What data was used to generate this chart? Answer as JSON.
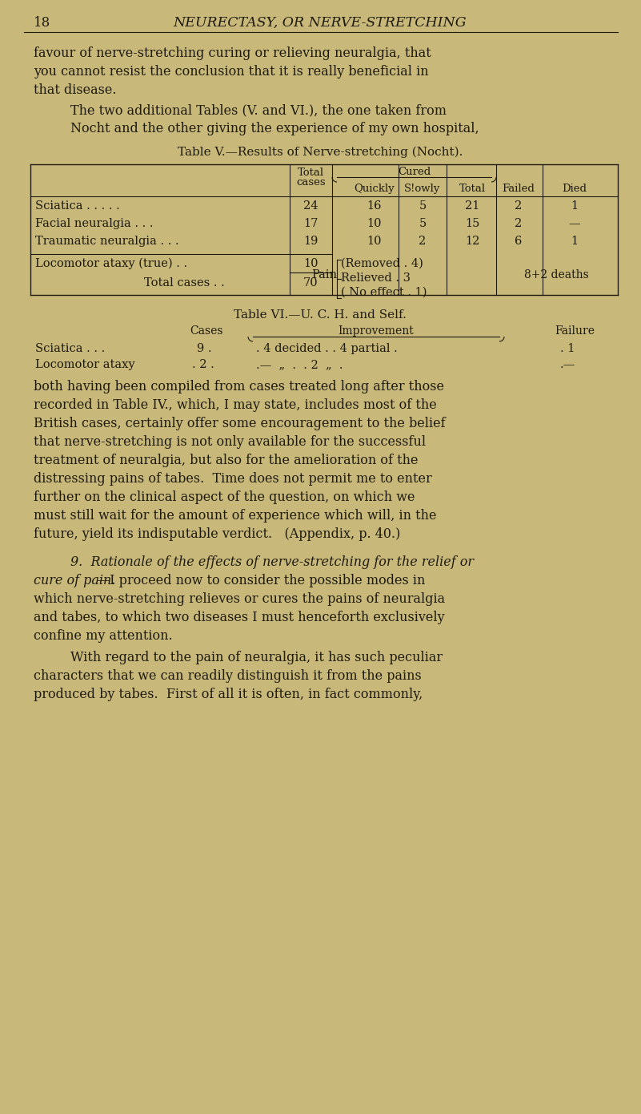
{
  "bg_color": "#c8b97a",
  "text_color": "#1e1a10",
  "page_number": "18",
  "header_title": "NEURECTASY, OR NERVE-STRETCHING",
  "para1_lines": [
    "favour of nerve-stretching curing or relieving neuralgia, that",
    "you cannot resist the conclusion that it is really beneficial in",
    "that disease."
  ],
  "para2_lines": [
    "The two additional Tables (V. and VI.), the one taken from",
    "Nocht and the other giving the experience of my own hospital,"
  ],
  "table5_title": "Table V.—Results of Nerve-stretching (Nocht).",
  "table5_rows": [
    [
      "Sciatica . . . . .",
      "24",
      "16",
      "5",
      "21",
      "2",
      "1"
    ],
    [
      "Facial neuralgia . . .",
      "17",
      "10",
      "5",
      "15",
      "2",
      "—"
    ],
    [
      "Traumatic neuralgia . . .",
      "19",
      "10",
      "2",
      "12",
      "6",
      "1"
    ]
  ],
  "table5_loco_label": "Locomotor ataxy (true) . .",
  "table5_loco_cases": "10",
  "table5_total_label": "Total cases . .",
  "table5_total": "70",
  "table5_loco_removed": "(Removed . 4)",
  "table5_loco_relieved": "Relieved . 3",
  "table5_loco_noeffect": "No effect . 1)",
  "table5_loco_suffix": "8+2 deaths",
  "table6_title": "Table VI.—U. C. H. and Self.",
  "table6_row1": [
    "Sciatica . . .",
    "9 .",
    ". 4 decided . . 4 partial .",
    ". 1"
  ],
  "table6_row2": [
    "Locomotor ataxy",
    ". 2 .",
    ".—  „  .  . 2  „  .",
    ".—"
  ],
  "para3_lines": [
    "both having been compiled from cases treated long after those",
    "recorded in Table IV., which, I may state, includes most of the",
    "British cases, certainly offer some encouragement to the belief",
    "that nerve-stretching is not only available for the successful",
    "treatment of neuralgia, but also for the amelioration of the",
    "distressing pains of tabes.  Time does not permit me to enter",
    "further on the clinical aspect of the question, on which we",
    "must still wait for the amount of experience which will, in the",
    "future, yield its indisputable verdict.   (Appendix, p. 40.)"
  ],
  "para4_line1_italic": "9.  Rationale of the effects of nerve-stretching for the relief or",
  "para4_line2_italic": "cure of pain.",
  "para4_line2_normal": "—I proceed now to consider the possible modes in",
  "para4_lines_normal": [
    "which nerve-stretching relieves or cures the pains of neuralgia",
    "and tabes, to which two diseases I must henceforth exclusively",
    "confine my attention."
  ],
  "para5_line1": "With regard to the pain of neuralgia, it has such peculiar",
  "para5_lines": [
    "characters that we can readily distinguish it from the pains",
    "produced by tabes.  First of all it is often, in fact commonly,"
  ]
}
